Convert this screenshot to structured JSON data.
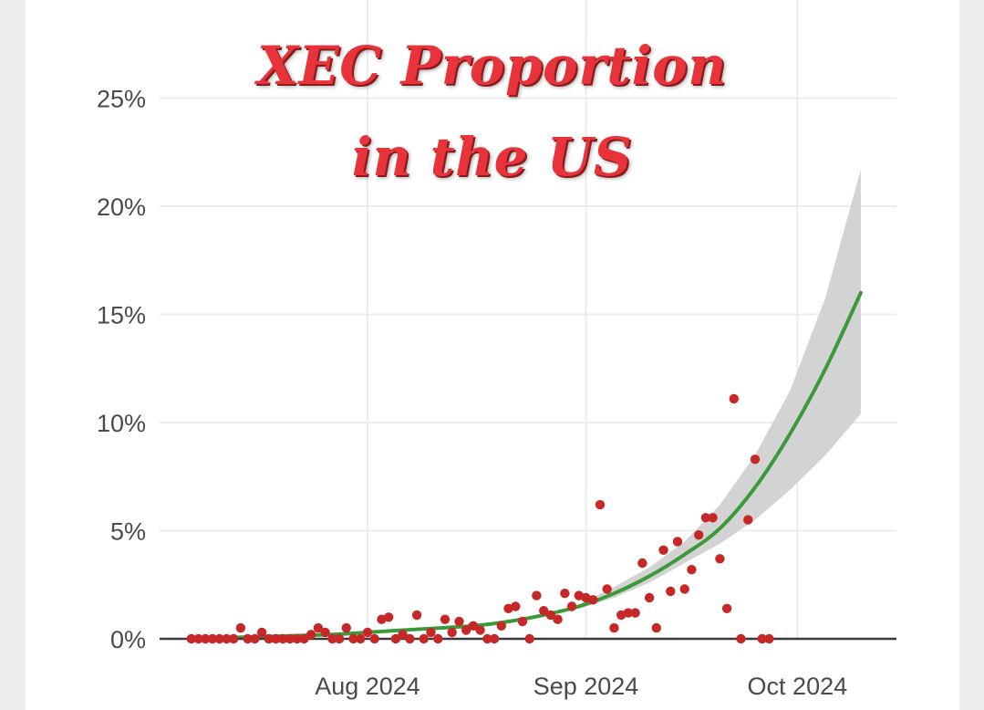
{
  "chart_data": {
    "type": "scatter",
    "title": "XEC Proportion",
    "subtitle": "in the US",
    "xlabel": "",
    "ylabel": "",
    "x_ticks": [
      "Aug 2024",
      "Sep 2024",
      "Oct 2024"
    ],
    "x_tick_dates": [
      "2024-08-01",
      "2024-09-01",
      "2024-10-01"
    ],
    "y_ticks": [
      "0%",
      "5%",
      "10%",
      "15%",
      "20%",
      "25%"
    ],
    "y_tick_values": [
      0,
      5,
      10,
      15,
      20,
      25
    ],
    "ylim": [
      0,
      25
    ],
    "grid": true,
    "colors": {
      "points": "#c62828",
      "trend": "#3a9a3a",
      "ribbon": "#d3d3d3",
      "title": "#e8333a"
    },
    "series": [
      {
        "type": "scatter",
        "points": [
          [
            "2024-07-07",
            0.0
          ],
          [
            "2024-07-08",
            0.0
          ],
          [
            "2024-07-09",
            0.0
          ],
          [
            "2024-07-10",
            0.0
          ],
          [
            "2024-07-11",
            0.0
          ],
          [
            "2024-07-12",
            0.0
          ],
          [
            "2024-07-13",
            0.0
          ],
          [
            "2024-07-14",
            0.5
          ],
          [
            "2024-07-15",
            0.0
          ],
          [
            "2024-07-16",
            0.0
          ],
          [
            "2024-07-17",
            0.3
          ],
          [
            "2024-07-18",
            0.0
          ],
          [
            "2024-07-19",
            0.0
          ],
          [
            "2024-07-20",
            0.0
          ],
          [
            "2024-07-21",
            0.0
          ],
          [
            "2024-07-22",
            0.0
          ],
          [
            "2024-07-23",
            0.0
          ],
          [
            "2024-07-24",
            0.2
          ],
          [
            "2024-07-25",
            0.5
          ],
          [
            "2024-07-26",
            0.3
          ],
          [
            "2024-07-27",
            0.0
          ],
          [
            "2024-07-28",
            0.0
          ],
          [
            "2024-07-29",
            0.5
          ],
          [
            "2024-07-30",
            0.0
          ],
          [
            "2024-07-31",
            0.0
          ],
          [
            "2024-08-01",
            0.3
          ],
          [
            "2024-08-02",
            0.0
          ],
          [
            "2024-08-03",
            0.9
          ],
          [
            "2024-08-04",
            1.0
          ],
          [
            "2024-08-05",
            0.0
          ],
          [
            "2024-08-06",
            0.2
          ],
          [
            "2024-08-07",
            0.0
          ],
          [
            "2024-08-08",
            1.1
          ],
          [
            "2024-08-09",
            0.0
          ],
          [
            "2024-08-10",
            0.3
          ],
          [
            "2024-08-11",
            0.0
          ],
          [
            "2024-08-12",
            0.9
          ],
          [
            "2024-08-13",
            0.3
          ],
          [
            "2024-08-14",
            0.8
          ],
          [
            "2024-08-15",
            0.4
          ],
          [
            "2024-08-16",
            0.6
          ],
          [
            "2024-08-17",
            0.4
          ],
          [
            "2024-08-18",
            0.0
          ],
          [
            "2024-08-19",
            0.0
          ],
          [
            "2024-08-20",
            0.6
          ],
          [
            "2024-08-21",
            1.4
          ],
          [
            "2024-08-22",
            1.5
          ],
          [
            "2024-08-23",
            0.8
          ],
          [
            "2024-08-24",
            0.0
          ],
          [
            "2024-08-25",
            2.0
          ],
          [
            "2024-08-26",
            1.3
          ],
          [
            "2024-08-27",
            1.1
          ],
          [
            "2024-08-28",
            0.9
          ],
          [
            "2024-08-29",
            2.1
          ],
          [
            "2024-08-30",
            1.5
          ],
          [
            "2024-08-31",
            2.0
          ],
          [
            "2024-09-01",
            1.9
          ],
          [
            "2024-09-02",
            1.8
          ],
          [
            "2024-09-03",
            6.2
          ],
          [
            "2024-09-04",
            2.3
          ],
          [
            "2024-09-05",
            0.5
          ],
          [
            "2024-09-06",
            1.1
          ],
          [
            "2024-09-07",
            1.2
          ],
          [
            "2024-09-08",
            1.2
          ],
          [
            "2024-09-09",
            3.5
          ],
          [
            "2024-09-10",
            1.9
          ],
          [
            "2024-09-11",
            0.5
          ],
          [
            "2024-09-12",
            4.1
          ],
          [
            "2024-09-13",
            2.2
          ],
          [
            "2024-09-14",
            4.5
          ],
          [
            "2024-09-15",
            2.3
          ],
          [
            "2024-09-16",
            3.2
          ],
          [
            "2024-09-17",
            4.8
          ],
          [
            "2024-09-18",
            5.6
          ],
          [
            "2024-09-19",
            5.6
          ],
          [
            "2024-09-20",
            3.7
          ],
          [
            "2024-09-21",
            1.4
          ],
          [
            "2024-09-22",
            11.1
          ],
          [
            "2024-09-23",
            0.0
          ],
          [
            "2024-09-24",
            5.5
          ],
          [
            "2024-09-25",
            8.3
          ],
          [
            "2024-09-26",
            0.0
          ],
          [
            "2024-09-27",
            0.0
          ]
        ]
      },
      {
        "type": "line",
        "points": [
          [
            "2024-07-07",
            0.0
          ],
          [
            "2024-07-17",
            0.1
          ],
          [
            "2024-07-27",
            0.2
          ],
          [
            "2024-08-06",
            0.4
          ],
          [
            "2024-08-16",
            0.6
          ],
          [
            "2024-08-21",
            0.8
          ],
          [
            "2024-08-26",
            1.1
          ],
          [
            "2024-08-31",
            1.5
          ],
          [
            "2024-09-05",
            2.1
          ],
          [
            "2024-09-10",
            2.9
          ],
          [
            "2024-09-15",
            3.9
          ],
          [
            "2024-09-20",
            5.1
          ],
          [
            "2024-09-25",
            7.0
          ],
          [
            "2024-09-30",
            9.5
          ],
          [
            "2024-10-05",
            12.5
          ],
          [
            "2024-10-10",
            16.0
          ]
        ]
      },
      {
        "type": "area",
        "upper": [
          [
            "2024-08-31",
            1.6
          ],
          [
            "2024-09-05",
            2.4
          ],
          [
            "2024-09-10",
            3.3
          ],
          [
            "2024-09-15",
            4.5
          ],
          [
            "2024-09-20",
            6.2
          ],
          [
            "2024-09-25",
            8.5
          ],
          [
            "2024-09-30",
            11.5
          ],
          [
            "2024-10-05",
            15.8
          ],
          [
            "2024-10-10",
            21.7
          ]
        ],
        "lower": [
          [
            "2024-08-31",
            1.4
          ],
          [
            "2024-09-05",
            1.9
          ],
          [
            "2024-09-10",
            2.6
          ],
          [
            "2024-09-15",
            3.5
          ],
          [
            "2024-09-20",
            4.4
          ],
          [
            "2024-09-25",
            5.5
          ],
          [
            "2024-09-30",
            6.9
          ],
          [
            "2024-10-05",
            8.5
          ],
          [
            "2024-10-10",
            10.4
          ]
        ]
      }
    ]
  }
}
